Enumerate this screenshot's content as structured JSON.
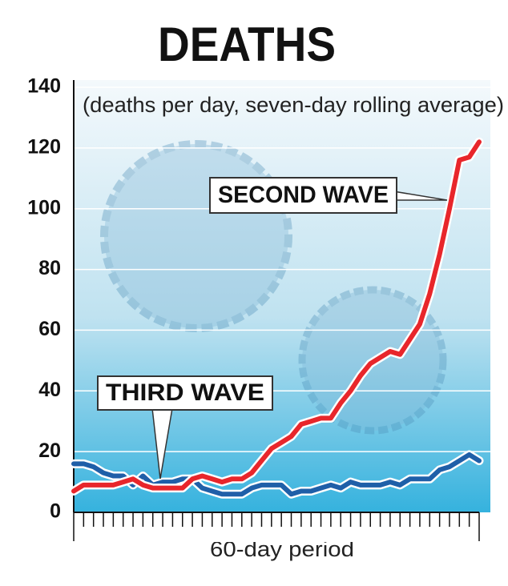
{
  "chart_data": {
    "type": "line",
    "title": "DEATHS",
    "subtitle": "(deaths per day, seven-day rolling average)",
    "x_label": "60-day period",
    "categories": [
      null,
      null,
      null,
      null,
      null,
      null,
      null,
      null,
      null,
      null,
      null,
      null,
      null,
      null,
      null,
      null,
      null,
      null,
      null,
      null,
      null,
      null,
      null,
      null,
      null,
      null,
      null,
      null,
      null,
      null,
      null,
      null,
      null,
      null,
      null,
      null,
      null,
      null,
      null,
      null,
      null,
      null
    ],
    "series": [
      {
        "name": "SECOND WAVE",
        "color": "#e8262b",
        "values": [
          7,
          9,
          9,
          9,
          9,
          10,
          11,
          9,
          8,
          8,
          8,
          8,
          11,
          12,
          11,
          10,
          11,
          11,
          13,
          17,
          21,
          23,
          25,
          29,
          30,
          31,
          31,
          36,
          40,
          45,
          49,
          51,
          53,
          52,
          57,
          62,
          72,
          85,
          100,
          116,
          117,
          122
        ]
      },
      {
        "name": "THIRD WAVE",
        "color": "#1f5fa8",
        "values": [
          16,
          16,
          15,
          13,
          12,
          12,
          9,
          12,
          9,
          10,
          10,
          11,
          11,
          8,
          7,
          6,
          6,
          6,
          8,
          9,
          9,
          9,
          6,
          7,
          7,
          8,
          9,
          8,
          10,
          9,
          9,
          9,
          10,
          9,
          11,
          11,
          11,
          14,
          15,
          17,
          19,
          17
        ]
      }
    ],
    "ylim": [
      0,
      140
    ],
    "yticks": [
      0,
      20,
      40,
      60,
      80,
      100,
      120,
      140
    ],
    "grid": true
  }
}
